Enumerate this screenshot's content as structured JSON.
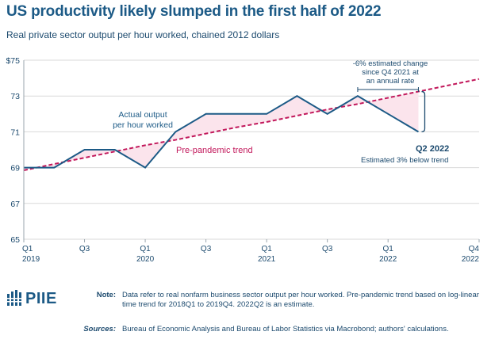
{
  "title": "US productivity likely slumped in the first half of 2022",
  "subtitle": "Real private sector output per hour worked, chained 2012 dollars",
  "chart_data": {
    "type": "line",
    "ylim": [
      65,
      75
    ],
    "yticks": [
      "$75",
      "73",
      "71",
      "69",
      "67",
      "65"
    ],
    "yticks_values": [
      75,
      73,
      71,
      69,
      67,
      65
    ],
    "xticks": [
      {
        "top": "Q1",
        "bottom": "2019"
      },
      {
        "top": "Q3",
        "bottom": ""
      },
      {
        "top": "Q1",
        "bottom": "2020"
      },
      {
        "top": "Q3",
        "bottom": ""
      },
      {
        "top": "Q1",
        "bottom": "2021"
      },
      {
        "top": "Q3",
        "bottom": ""
      },
      {
        "top": "Q1",
        "bottom": "2022"
      },
      {
        "top": "Q4",
        "bottom": "2022"
      }
    ],
    "x": [
      "2019Q1",
      "2019Q2",
      "2019Q3",
      "2019Q4",
      "2020Q1",
      "2020Q2",
      "2020Q3",
      "2020Q4",
      "2021Q1",
      "2021Q2",
      "2021Q3",
      "2021Q4",
      "2022Q1",
      "2022Q2",
      "2022Q3",
      "2022Q4"
    ],
    "series": [
      {
        "name": "Actual output per hour worked",
        "color": "#1c5a86",
        "values": [
          69.0,
          69.0,
          70.0,
          70.0,
          69.0,
          71.0,
          72.0,
          72.0,
          72.0,
          73.0,
          72.0,
          73.0,
          72.0,
          71.0,
          null,
          null
        ]
      },
      {
        "name": "Pre-pandemic trend",
        "color": "#c2185b",
        "style": "dashed",
        "values": [
          68.85,
          69.2,
          69.55,
          69.9,
          70.25,
          70.55,
          70.9,
          71.25,
          71.55,
          71.9,
          72.25,
          72.55,
          72.9,
          73.25,
          73.6,
          73.95
        ]
      }
    ],
    "annotations": {
      "actual_label": [
        "Actual output",
        "per hour worked"
      ],
      "trend_label": "Pre-pandemic trend",
      "change_label": [
        "-6% estimated change",
        "since Q4 2021 at",
        "an annual rate"
      ],
      "q2_label": "Q2 2022",
      "below_label": "Estimated 3% below trend"
    },
    "fill_color": "#fbe4ec",
    "grid": true
  },
  "note": {
    "label": "Note:",
    "text": "Data refer to real nonfarm business sector output per hour worked. Pre-pandemic trend based on log-linear time trend for 2018Q1 to 2019Q4. 2022Q2 is an estimate."
  },
  "sources": {
    "label": "Sources:",
    "text": "Bureau of Economic Analysis and Bureau of Labor Statistics via Macrobond; authors' calculations."
  },
  "logo": {
    "text": "PIIE",
    "icon": "piie-logo-icon"
  }
}
